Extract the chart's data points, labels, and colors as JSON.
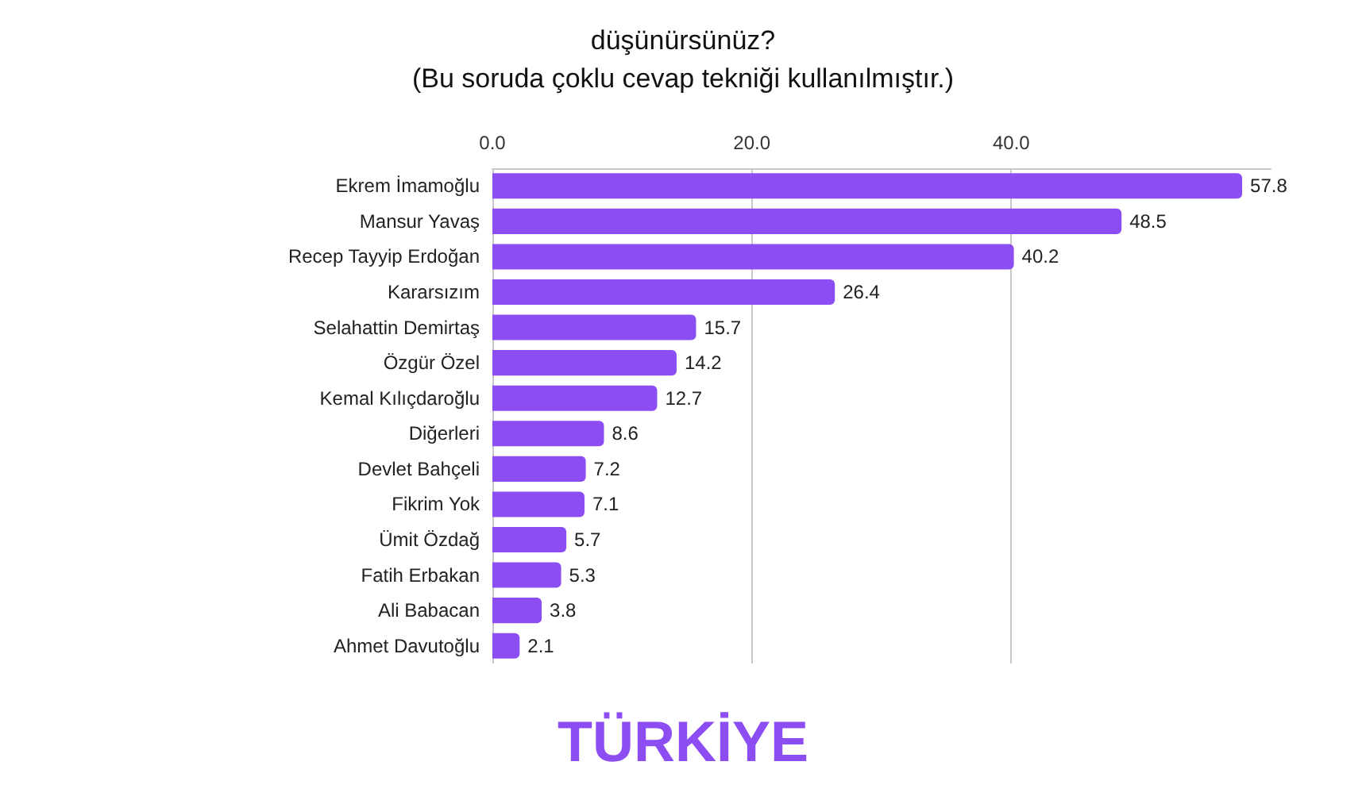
{
  "chart_data": {
    "type": "bar",
    "orientation": "horizontal",
    "title": "düşünürsünüz?",
    "subtitle": "(Bu soruda çoklu cevap tekniği kullanılmıştır.)",
    "categories": [
      "Ekrem İmamoğlu",
      "Mansur Yavaş",
      "Recep Tayyip Erdoğan",
      "Kararsızım",
      "Selahattin Demirtaş",
      "Özgür Özel",
      "Kemal Kılıçdaroğlu",
      "Diğerleri",
      "Devlet Bahçeli",
      "Fikrim Yok",
      "Ümit Özdağ",
      "Fatih Erbakan",
      "Ali Babacan",
      "Ahmet Davutoğlu"
    ],
    "values": [
      57.8,
      48.5,
      40.2,
      26.4,
      15.7,
      14.2,
      12.7,
      8.6,
      7.2,
      7.1,
      5.7,
      5.3,
      3.8,
      2.1
    ],
    "color": "#8c4df2",
    "xlim": [
      0,
      60
    ],
    "xticks": [
      {
        "value": 0,
        "label": "0.0"
      },
      {
        "value": 20,
        "label": "20.0"
      },
      {
        "value": 40,
        "label": "40.0"
      }
    ],
    "grid": "x",
    "data_labels": true,
    "annotations": [
      "TÜRKİYE"
    ]
  }
}
